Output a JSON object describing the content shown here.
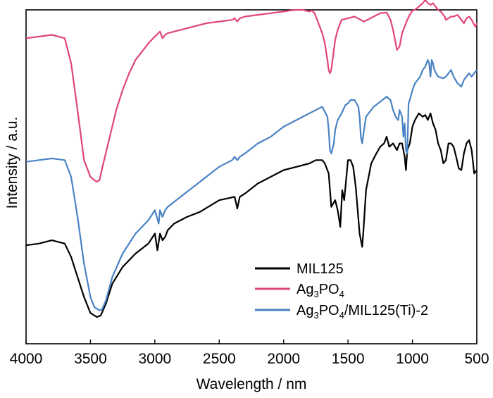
{
  "chart_data": {
    "type": "line",
    "xlabel": "Wavelength / nm",
    "ylabel": "Intensity / a.u.",
    "xlim": [
      4000,
      500
    ],
    "x_reversed": true,
    "x_ticks": [
      4000,
      3500,
      3000,
      2500,
      2000,
      1500,
      1000,
      500
    ],
    "y_ticks_shown": false,
    "ylim": [
      0,
      100
    ],
    "grid": false,
    "legend_position": "bottom-right",
    "series": [
      {
        "name": "MIL125",
        "name_parts": [
          [
            "MIL125",
            "normal"
          ]
        ],
        "color": "#000000",
        "x": [
          4000,
          3900,
          3800,
          3700,
          3650,
          3600,
          3550,
          3500,
          3450,
          3420,
          3380,
          3330,
          3250,
          3150,
          3050,
          3000,
          2980,
          2960,
          2940,
          2920,
          2900,
          2850,
          2750,
          2650,
          2500,
          2380,
          2360,
          2340,
          2300,
          2200,
          2100,
          2000,
          1900,
          1800,
          1750,
          1700,
          1680,
          1650,
          1630,
          1600,
          1580,
          1560,
          1545,
          1530,
          1500,
          1480,
          1460,
          1440,
          1410,
          1390,
          1380,
          1360,
          1320,
          1280,
          1250,
          1220,
          1200,
          1180,
          1150,
          1120,
          1100,
          1080,
          1060,
          1050,
          1040,
          1020,
          1000,
          980,
          950,
          920,
          900,
          880,
          860,
          840,
          820,
          800,
          780,
          760,
          740,
          720,
          700,
          680,
          660,
          640,
          620,
          600,
          580,
          560,
          540,
          520,
          500
        ],
        "y": [
          29.5,
          30,
          31,
          30,
          26,
          20,
          14,
          9.2,
          8,
          8.5,
          12,
          18,
          23,
          27,
          30,
          33,
          28,
          33,
          31,
          32,
          34,
          36,
          38,
          39.5,
          43,
          44,
          40.5,
          44,
          45,
          48,
          50,
          52,
          53,
          54,
          55,
          55,
          54,
          51,
          41,
          43,
          40,
          35,
          46,
          43,
          55,
          55,
          53,
          47,
          33,
          29,
          34,
          46,
          54,
          57,
          59,
          60,
          62,
          59,
          60,
          58,
          60,
          60,
          56,
          52,
          58,
          60,
          65,
          67,
          69,
          68,
          68.5,
          67,
          69,
          66,
          64,
          60,
          58,
          54,
          55,
          60,
          60,
          59,
          56,
          52.5,
          52,
          57,
          60,
          61,
          58,
          51,
          52
        ]
      },
      {
        "name": "Ag3PO4",
        "name_parts": [
          [
            "Ag",
            "normal"
          ],
          [
            "3",
            "sub"
          ],
          [
            "PO",
            "normal"
          ],
          [
            "4",
            "sub"
          ]
        ],
        "color": "#e0457a",
        "x": [
          4000,
          3900,
          3800,
          3700,
          3650,
          3600,
          3550,
          3500,
          3470,
          3450,
          3430,
          3400,
          3350,
          3300,
          3250,
          3200,
          3150,
          3100,
          3050,
          3000,
          2960,
          2940,
          2920,
          2900,
          2850,
          2800,
          2700,
          2600,
          2500,
          2400,
          2380,
          2360,
          2340,
          2300,
          2200,
          2100,
          2000,
          1950,
          1900,
          1850,
          1800,
          1780,
          1760,
          1740,
          1700,
          1680,
          1660,
          1650,
          1640,
          1630,
          1620,
          1600,
          1580,
          1550,
          1500,
          1450,
          1400,
          1380,
          1350,
          1300,
          1250,
          1200,
          1170,
          1150,
          1130,
          1120,
          1100,
          1090,
          1080,
          1060,
          1040,
          1020,
          1000,
          980,
          950,
          920,
          900,
          880,
          860,
          840,
          820,
          800,
          780,
          760,
          750,
          740,
          720,
          700,
          680,
          650,
          620,
          600,
          580,
          560,
          540,
          520,
          510,
          500
        ],
        "y": [
          91.5,
          92,
          92.5,
          91.5,
          84,
          70,
          55,
          50,
          49,
          48.5,
          49,
          54,
          62,
          70,
          76,
          81,
          85,
          87.5,
          90,
          92,
          93.5,
          91.5,
          92.5,
          93,
          93.5,
          94,
          95,
          96,
          96.5,
          97,
          97.5,
          96.5,
          97.5,
          98,
          98.5,
          99,
          99.5,
          99.8,
          100,
          100,
          99.5,
          99.8,
          99,
          97,
          93,
          90,
          85,
          82,
          81,
          82,
          85,
          91,
          94,
          97,
          97.5,
          98,
          97,
          96.5,
          97,
          98,
          99,
          99.2,
          97,
          94,
          90,
          88,
          89,
          91,
          93,
          95,
          97,
          98.5,
          99.8,
          100,
          101,
          102,
          103,
          102,
          101.5,
          102,
          101,
          100,
          99.5,
          98.5,
          98,
          97,
          97.5,
          98,
          98,
          98.5,
          97,
          96,
          97.5,
          98,
          97,
          95.5,
          95,
          96
        ]
      },
      {
        "name": "Ag3PO4/MIL125(Ti)-2",
        "name_parts": [
          [
            "Ag",
            "normal"
          ],
          [
            "3",
            "sub"
          ],
          [
            "PO",
            "normal"
          ],
          [
            "4",
            "sub"
          ],
          [
            "/MIL125(Ti)-2",
            "normal"
          ]
        ],
        "color": "#4a82c4",
        "x": [
          4000,
          3900,
          3800,
          3700,
          3650,
          3600,
          3550,
          3500,
          3470,
          3450,
          3430,
          3410,
          3380,
          3330,
          3250,
          3150,
          3050,
          3000,
          2970,
          2960,
          2940,
          2920,
          2900,
          2800,
          2700,
          2600,
          2500,
          2400,
          2380,
          2360,
          2340,
          2300,
          2200,
          2100,
          2000,
          1900,
          1800,
          1750,
          1700,
          1680,
          1660,
          1650,
          1640,
          1630,
          1610,
          1600,
          1580,
          1550,
          1520,
          1500,
          1480,
          1450,
          1420,
          1410,
          1400,
          1390,
          1380,
          1360,
          1300,
          1250,
          1200,
          1170,
          1150,
          1130,
          1110,
          1100,
          1090,
          1080,
          1070,
          1060,
          1050,
          1040,
          1030,
          1020,
          1000,
          980,
          960,
          940,
          920,
          900,
          890,
          880,
          870,
          860,
          850,
          840,
          830,
          800,
          760,
          740,
          720,
          700,
          680,
          650,
          620,
          600,
          580,
          560,
          540,
          520,
          500
        ],
        "y": [
          54.5,
          55,
          55.5,
          55,
          50,
          38,
          24,
          14,
          11,
          10.5,
          10,
          10.3,
          13,
          20,
          27,
          33,
          37,
          40,
          36,
          40,
          38,
          40,
          41,
          44,
          47,
          50,
          53,
          55,
          56,
          55,
          56,
          57,
          60,
          62,
          65,
          67,
          69,
          70,
          71,
          69.5,
          68,
          64,
          58,
          57,
          60,
          64,
          67,
          69,
          71.5,
          72,
          73,
          73,
          71,
          68,
          62,
          60,
          63,
          68,
          71,
          72.5,
          74,
          73,
          70,
          68,
          67,
          70,
          69,
          68,
          62,
          66,
          58,
          57,
          72,
          73,
          76,
          78,
          79,
          80,
          82,
          83,
          84,
          85,
          84,
          80,
          85,
          84,
          82,
          80,
          79.5,
          80,
          81,
          82,
          80,
          78,
          77,
          79,
          80,
          81,
          80,
          81,
          82
        ]
      }
    ]
  }
}
